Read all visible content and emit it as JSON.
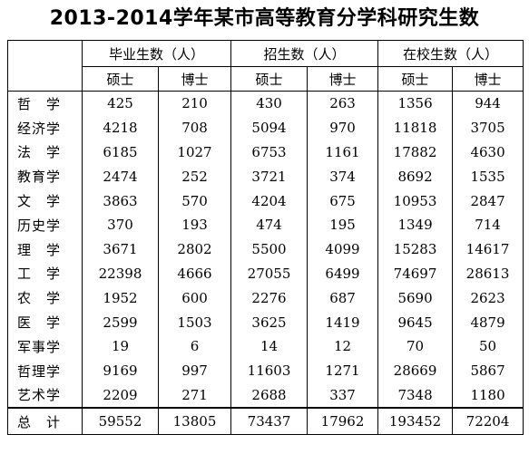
{
  "title": "2013-2014学年某市高等教育分学科研究生数",
  "groups": [
    "毕业生数（人）",
    "招生数（人）",
    "在校生数（人）"
  ],
  "sub_headers": [
    "硕士",
    "博士",
    "硕士",
    "博士",
    "硕士",
    "博士"
  ],
  "rows": [
    {
      "label": "哲　学",
      "values": [
        "425",
        "210",
        "430",
        "263",
        "1356",
        "944"
      ]
    },
    {
      "label": "经济学",
      "values": [
        "4218",
        "708",
        "5094",
        "970",
        "11818",
        "3705"
      ]
    },
    {
      "label": "法　学",
      "values": [
        "6185",
        "1027",
        "6753",
        "1161",
        "17882",
        "4630"
      ]
    },
    {
      "label": "教育学",
      "values": [
        "2474",
        "252",
        "3721",
        "374",
        "8692",
        "1535"
      ]
    },
    {
      "label": "文　学",
      "values": [
        "3863",
        "570",
        "4204",
        "675",
        "10953",
        "2847"
      ]
    },
    {
      "label": "历史学",
      "values": [
        "370",
        "193",
        "474",
        "195",
        "1349",
        "714"
      ]
    },
    {
      "label": "理　学",
      "values": [
        "3671",
        "2802",
        "5500",
        "4099",
        "15283",
        "14617"
      ]
    },
    {
      "label": "工　学",
      "values": [
        "22398",
        "4666",
        "27055",
        "6499",
        "74697",
        "28613"
      ]
    },
    {
      "label": "农　学",
      "values": [
        "1952",
        "600",
        "2276",
        "687",
        "5690",
        "2623"
      ]
    },
    {
      "label": "医　学",
      "values": [
        "2599",
        "1503",
        "3625",
        "1419",
        "9645",
        "4879"
      ]
    },
    {
      "label": "军事学",
      "values": [
        "19",
        "6",
        "14",
        "12",
        "70",
        "50"
      ]
    },
    {
      "label": "哲理学",
      "values": [
        "9169",
        "997",
        "11603",
        "1271",
        "28669",
        "5867"
      ]
    },
    {
      "label": "艺术学",
      "values": [
        "2209",
        "271",
        "2688",
        "337",
        "7348",
        "1180"
      ]
    }
  ],
  "total": {
    "label": "总　计",
    "values": [
      "59552",
      "13805",
      "73437",
      "17962",
      "193452",
      "72204"
    ]
  }
}
